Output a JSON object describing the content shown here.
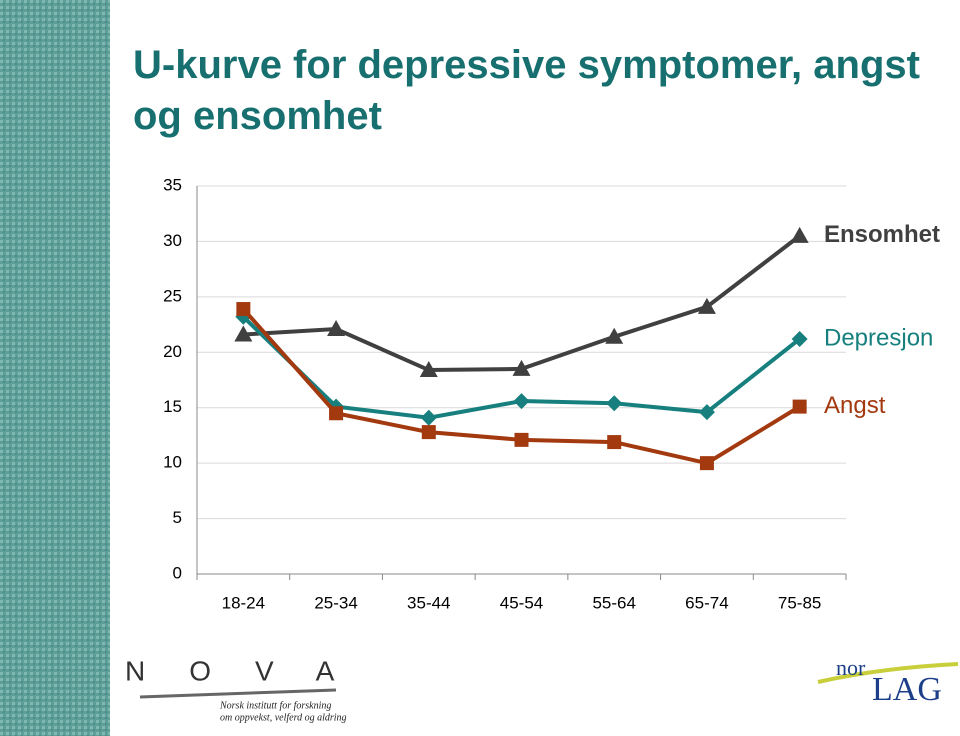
{
  "chart_data": {
    "type": "line",
    "title": "U-kurve for depressive symptomer, angst og ensomhet",
    "categories": [
      "18-24",
      "25-34",
      "35-44",
      "45-54",
      "55-64",
      "65-74",
      "75-85"
    ],
    "series": [
      {
        "name": "Ensomhet",
        "color": "#404040",
        "marker": "triangle",
        "values": [
          21.6,
          22.1,
          18.4,
          18.5,
          21.4,
          24.1,
          30.5
        ]
      },
      {
        "name": "Depresjon",
        "color": "#17807e",
        "marker": "diamond",
        "values": [
          23.2,
          15.1,
          14.1,
          15.6,
          15.4,
          14.6,
          21.2
        ]
      },
      {
        "name": "Angst",
        "color": "#a3390f",
        "marker": "square",
        "values": [
          23.9,
          14.5,
          12.8,
          12.1,
          11.9,
          10.0,
          15.1
        ]
      }
    ],
    "ylim": [
      0,
      35
    ],
    "yticks": [
      0,
      5,
      10,
      15,
      20,
      25,
      30,
      35
    ],
    "grid": true
  },
  "footer": {
    "nova": "NOVA",
    "nova_line1": "Norsk institutt for forskning",
    "nova_line2": "om oppvekst, velferd og aldring",
    "norlag_small": "nor",
    "norlag_big": "LAG"
  }
}
